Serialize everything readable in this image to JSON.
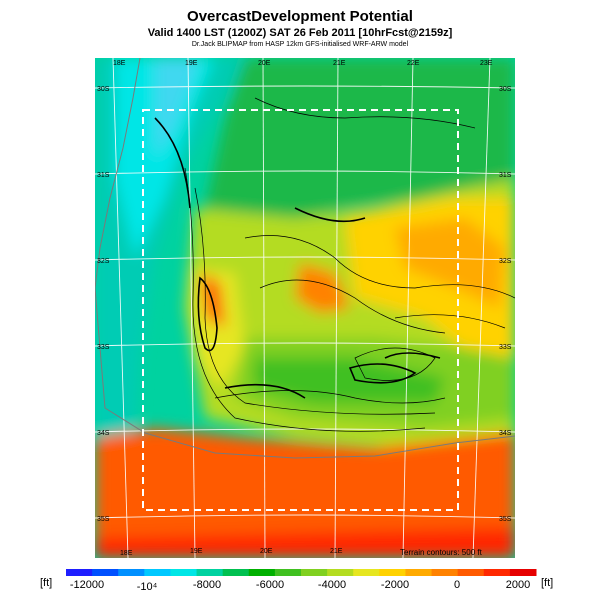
{
  "title": "OvercastDevelopment Potential",
  "subtitle": "Valid 1400 LST (1200Z) SAT 26 Feb 2011 [10hrFcst@2159z]",
  "credit": "Dr.Jack BLIPMAP from HASP 12km GFS-initialised WRF-ARW model",
  "map": {
    "lon_labels_top": [
      "18E",
      "19E",
      "20E",
      "21E",
      "22E",
      "23E"
    ],
    "lon_labels_bottom": [
      "18E",
      "19E",
      "20E",
      "21E"
    ],
    "lat_labels_left": [
      "30S",
      "31S",
      "32S",
      "33S",
      "34S",
      "35S"
    ],
    "lat_labels_right": [
      "30S",
      "31S",
      "32S",
      "33S",
      "34S",
      "35S"
    ],
    "terrain_note": "Terrain contours: 500 ft"
  },
  "colorbar": {
    "unit_left": "[ft]",
    "unit_right": "[ft]",
    "tick_labels": [
      "-12000",
      "-10⁴",
      "-8000",
      "-6000",
      "-4000",
      "-2000",
      "0",
      "2000"
    ],
    "colors": [
      "#1e1eff",
      "#0050ff",
      "#0090ff",
      "#00c8ff",
      "#00e6e6",
      "#00d2a0",
      "#00c050",
      "#00b000",
      "#40c020",
      "#80d020",
      "#b4dc20",
      "#e6e620",
      "#ffd200",
      "#ffaa00",
      "#ff8200",
      "#ff5a00",
      "#ff2800",
      "#e60000"
    ]
  }
}
